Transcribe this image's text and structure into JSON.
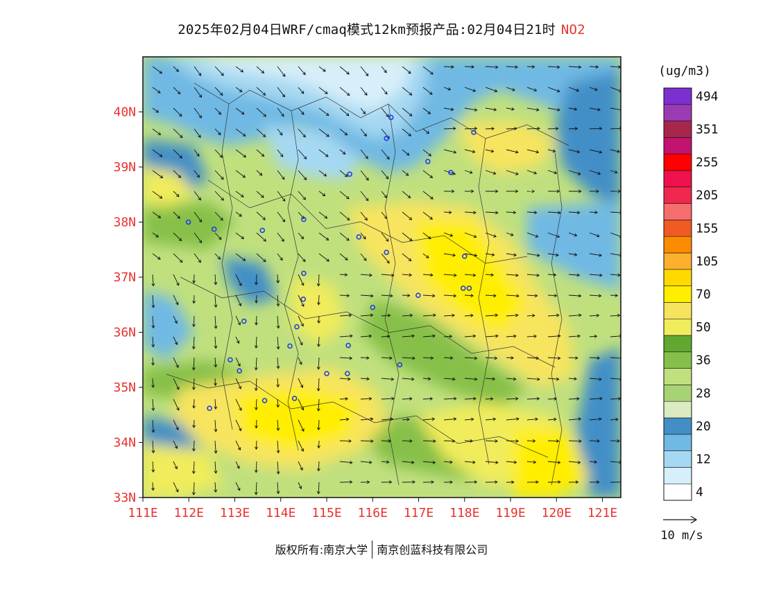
{
  "title": {
    "text": "2025年02月04日WRF/cmaq模式12km预报产品:02月04日21时",
    "species": "NO2",
    "species_color": "#e8322e"
  },
  "map": {
    "lon_range": [
      111,
      121.4
    ],
    "lat_range": [
      33,
      41
    ],
    "x_ticks": [
      "111E",
      "112E",
      "113E",
      "114E",
      "115E",
      "116E",
      "117E",
      "118E",
      "119E",
      "120E",
      "121E"
    ],
    "y_ticks": [
      "33N",
      "34N",
      "35N",
      "36N",
      "37N",
      "38N",
      "39N",
      "40N"
    ],
    "tick_color": "#e8322e",
    "cities": [
      [
        116.4,
        39.9
      ],
      [
        117.2,
        39.1
      ],
      [
        114.5,
        38.05
      ],
      [
        115.5,
        38.87
      ],
      [
        114.5,
        37.07
      ],
      [
        114.49,
        36.6
      ],
      [
        115.47,
        35.76
      ],
      [
        116.99,
        36.67
      ],
      [
        116.59,
        35.41
      ],
      [
        113.65,
        34.76
      ],
      [
        114.3,
        34.8
      ],
      [
        112.45,
        34.62
      ],
      [
        113.2,
        36.2
      ],
      [
        112.9,
        35.5
      ],
      [
        113.1,
        35.3
      ],
      [
        112.55,
        37.87
      ],
      [
        111.99,
        38.0
      ],
      [
        118.0,
        37.38
      ],
      [
        118.1,
        36.8
      ],
      [
        116.3,
        37.45
      ],
      [
        115.7,
        37.73
      ],
      [
        113.6,
        37.85
      ],
      [
        117.97,
        36.8
      ],
      [
        116.0,
        36.45
      ],
      [
        115.0,
        35.25
      ],
      [
        114.35,
        36.1
      ],
      [
        114.2,
        35.75
      ],
      [
        116.3,
        39.52
      ],
      [
        118.2,
        39.63
      ],
      [
        115.45,
        35.25
      ],
      [
        117.7,
        38.9
      ]
    ]
  },
  "legend": {
    "unit": "(ug/m3)",
    "classes": [
      {
        "color": "#ffffff",
        "label": "4"
      },
      {
        "color": "#d7effa",
        "label": ""
      },
      {
        "color": "#a5d8f2",
        "label": "12"
      },
      {
        "color": "#70b9e4",
        "label": ""
      },
      {
        "color": "#428fc7",
        "label": "20"
      },
      {
        "color": "#dcebc2",
        "label": ""
      },
      {
        "color": "#a8d374",
        "label": "28"
      },
      {
        "color": "#c0e07e",
        "label": ""
      },
      {
        "color": "#86c04a",
        "label": "36"
      },
      {
        "color": "#62a830",
        "label": ""
      },
      {
        "color": "#f0ec5c",
        "label": "50"
      },
      {
        "color": "#f7e45e",
        "label": ""
      },
      {
        "color": "#ffee00",
        "label": "70"
      },
      {
        "color": "#ffd900",
        "label": ""
      },
      {
        "color": "#fbb02e",
        "label": "105"
      },
      {
        "color": "#fb8c00",
        "label": ""
      },
      {
        "color": "#ef5b22",
        "label": "155"
      },
      {
        "color": "#f56d6d",
        "label": ""
      },
      {
        "color": "#f0284e",
        "label": "205"
      },
      {
        "color": "#f0104c",
        "label": ""
      },
      {
        "color": "#ff0000",
        "label": "255"
      },
      {
        "color": "#c2136e",
        "label": ""
      },
      {
        "color": "#a7264c",
        "label": "351"
      },
      {
        "color": "#9b3bb3",
        "label": ""
      },
      {
        "color": "#7e2fd0",
        "label": "494"
      }
    ]
  },
  "vector_reference": {
    "label": "10 m/s"
  },
  "footer": {
    "left": "版权所有:南京大学",
    "right": "南京创蓝科技有限公司"
  }
}
